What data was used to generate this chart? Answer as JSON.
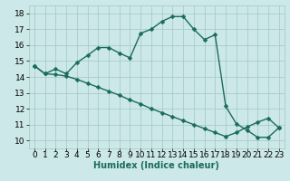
{
  "title": "",
  "xlabel": "Humidex (Indice chaleur)",
  "ylabel": "",
  "bg_color": "#cce8e8",
  "grid_color": "#aacccc",
  "line_color": "#1a6b5f",
  "marker": "D",
  "markersize": 2.5,
  "linewidth": 1.0,
  "xlim": [
    -0.5,
    23.5
  ],
  "ylim": [
    9.5,
    18.5
  ],
  "xticks": [
    0,
    1,
    2,
    3,
    4,
    5,
    6,
    7,
    8,
    9,
    10,
    11,
    12,
    13,
    14,
    15,
    16,
    17,
    18,
    19,
    20,
    21,
    22,
    23
  ],
  "yticks": [
    10,
    11,
    12,
    13,
    14,
    15,
    16,
    17,
    18
  ],
  "line1_x": [
    0,
    1,
    2,
    3,
    4,
    5,
    6,
    7,
    8,
    9,
    10,
    11,
    12,
    13,
    14,
    15,
    16,
    17,
    18,
    19,
    20,
    21,
    22,
    23
  ],
  "line1_y": [
    14.7,
    14.2,
    14.5,
    14.2,
    14.9,
    15.35,
    15.85,
    15.85,
    15.5,
    15.2,
    16.75,
    17.0,
    17.5,
    17.8,
    17.8,
    17.0,
    16.35,
    16.65,
    12.15,
    11.05,
    10.65,
    10.2,
    10.2,
    10.8
  ],
  "line2_x": [
    0,
    1,
    2,
    3,
    4,
    5,
    6,
    7,
    8,
    9,
    10,
    11,
    12,
    13,
    14,
    15,
    16,
    17,
    18,
    19,
    20,
    21,
    22,
    23
  ],
  "line2_y": [
    14.7,
    14.2,
    14.15,
    14.05,
    13.85,
    13.6,
    13.35,
    13.1,
    12.85,
    12.55,
    12.3,
    12.0,
    11.75,
    11.5,
    11.25,
    11.0,
    10.75,
    10.5,
    10.25,
    10.5,
    10.85,
    11.15,
    11.4,
    10.8
  ],
  "xlabel_fontsize": 7,
  "tick_fontsize": 6.5
}
